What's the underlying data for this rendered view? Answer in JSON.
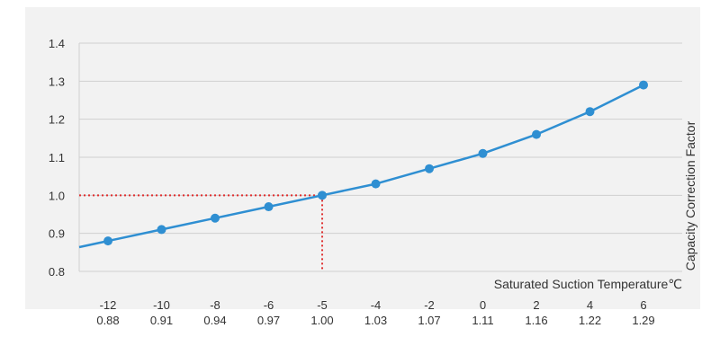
{
  "chart_data": {
    "type": "line",
    "title": "",
    "xlabel": "Saturated Suction Temperature℃",
    "ylabel": "Capacity Correction Factor",
    "ylim": [
      0.8,
      1.4
    ],
    "yticks": [
      "1.4",
      "1.3",
      "1.2",
      "1.1",
      "1.0",
      "0.9",
      "0.8"
    ],
    "x": [
      "-12",
      "-10",
      "-8",
      "-6",
      "-5",
      "-4",
      "-2",
      "0",
      "2",
      "4",
      "6"
    ],
    "x_values": [
      -12,
      -10,
      -8,
      -6,
      -5,
      -4,
      -2,
      0,
      2,
      4,
      6
    ],
    "value_labels": [
      "0.88",
      "0.91",
      "0.94",
      "0.97",
      "1.00",
      "1.03",
      "1.07",
      "1.11",
      "1.16",
      "1.22",
      "1.29"
    ],
    "series": [
      {
        "values": [
          0.88,
          0.91,
          0.94,
          0.97,
          1.0,
          1.03,
          1.07,
          1.11,
          1.16,
          1.22,
          1.29
        ]
      }
    ],
    "highlight": {
      "x": -5,
      "y": 1.0
    },
    "grid": true,
    "colors": {
      "line": "#2f8fd2",
      "highlight": "#e03030",
      "grid": "#d0d0d0"
    }
  }
}
